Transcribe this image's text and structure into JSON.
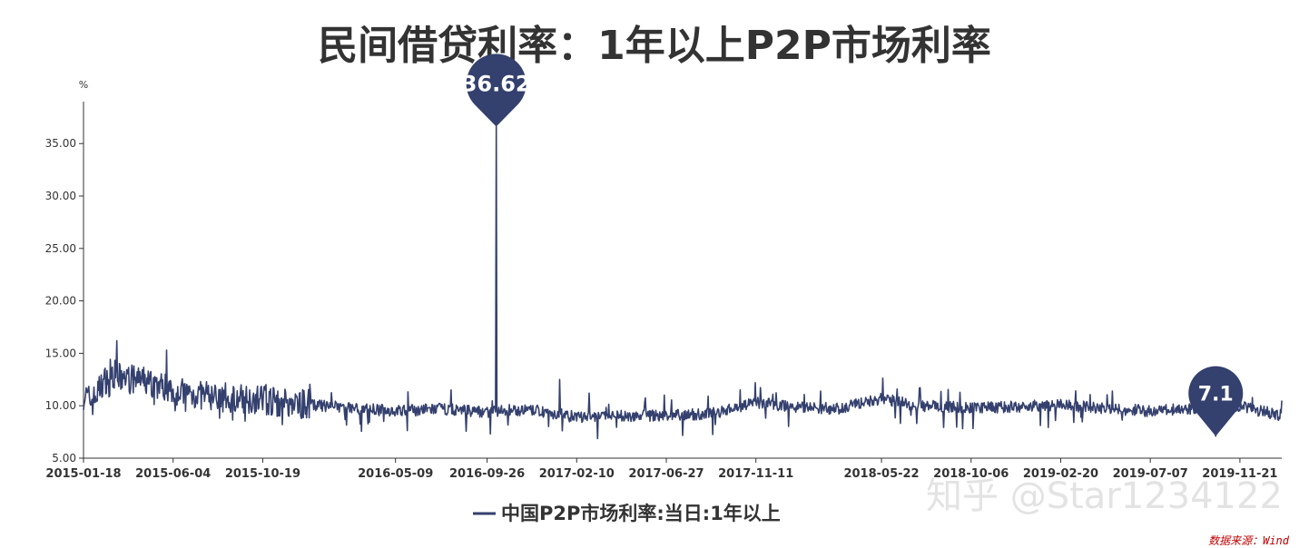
{
  "chart_data": {
    "type": "line",
    "title": "民间借贷利率：1年以上P2P市场利率",
    "ylabel": "%",
    "ylim": [
      5,
      39
    ],
    "yticks": [
      "5.00",
      "10.00",
      "15.00",
      "20.00",
      "25.00",
      "30.00",
      "35.00"
    ],
    "xlim": [
      "2015-01-18",
      "2020-01-24"
    ],
    "xticks": [
      "2015-01-18",
      "2015-06-04",
      "2015-10-19",
      "2016-05-09",
      "2016-09-26",
      "2017-02-10",
      "2017-06-27",
      "2017-11-11",
      "2018-05-22",
      "2018-10-06",
      "2019-02-20",
      "2019-07-07",
      "2019-11-21"
    ],
    "grid": false,
    "legend_position": "bottom-center",
    "series": [
      {
        "name": "中国P2P市场利率:当日:1年以上",
        "color": "#34406e",
        "points": [
          [
            "2015-01-18",
            11.0
          ],
          [
            "2015-02-01",
            10.4
          ],
          [
            "2015-02-15",
            12.0
          ],
          [
            "2015-03-01",
            13.2
          ],
          [
            "2015-03-15",
            12.6
          ],
          [
            "2015-04-01",
            12.5
          ],
          [
            "2015-04-15",
            12.4
          ],
          [
            "2015-05-01",
            12.2
          ],
          [
            "2015-05-15",
            11.9
          ],
          [
            "2015-06-04",
            11.6
          ],
          [
            "2015-06-20",
            11.2
          ],
          [
            "2015-07-15",
            11.0
          ],
          [
            "2015-08-15",
            10.8
          ],
          [
            "2015-09-15",
            10.7
          ],
          [
            "2015-10-19",
            10.6
          ],
          [
            "2015-11-15",
            10.3
          ],
          [
            "2015-12-15",
            10.2
          ],
          [
            "2016-01-15",
            10.0
          ],
          [
            "2016-03-01",
            9.8
          ],
          [
            "2016-05-09",
            9.5
          ],
          [
            "2016-06-15",
            9.6
          ],
          [
            "2016-07-15",
            9.7
          ],
          [
            "2016-08-15",
            9.6
          ],
          [
            "2016-09-26",
            9.4
          ],
          [
            "2016-11-01",
            9.6
          ],
          [
            "2016-12-15",
            9.5
          ],
          [
            "2017-02-10",
            8.9
          ],
          [
            "2017-04-01",
            9.0
          ],
          [
            "2017-06-27",
            9.1
          ],
          [
            "2017-09-01",
            9.2
          ],
          [
            "2017-11-11",
            10.3
          ],
          [
            "2018-01-15",
            9.9
          ],
          [
            "2018-03-15",
            9.7
          ],
          [
            "2018-05-22",
            10.7
          ],
          [
            "2018-07-15",
            10.0
          ],
          [
            "2018-10-06",
            9.8
          ],
          [
            "2018-12-15",
            9.9
          ],
          [
            "2019-02-20",
            10.1
          ],
          [
            "2019-04-15",
            9.8
          ],
          [
            "2019-07-07",
            9.5
          ],
          [
            "2019-09-01",
            9.7
          ],
          [
            "2019-11-21",
            9.9
          ],
          [
            "2020-01-24",
            9.1
          ]
        ],
        "spikes": [
          [
            "2015-03-10",
            16.2
          ],
          [
            "2015-05-25",
            15.3
          ],
          [
            "2016-10-10",
            36.62
          ],
          [
            "2017-01-15",
            12.5
          ],
          [
            "2017-03-01",
            11.2
          ],
          [
            "2019-10-15",
            7.1
          ]
        ]
      }
    ],
    "annotations": [
      {
        "type": "max",
        "date": "2016-10-10",
        "value": 36.62,
        "label": "36.62"
      },
      {
        "type": "min",
        "date": "2019-10-15",
        "value": 7.1,
        "label": "7.1"
      }
    ]
  },
  "watermark": "知乎 @Star1234122",
  "source": "数据来源：Wind"
}
